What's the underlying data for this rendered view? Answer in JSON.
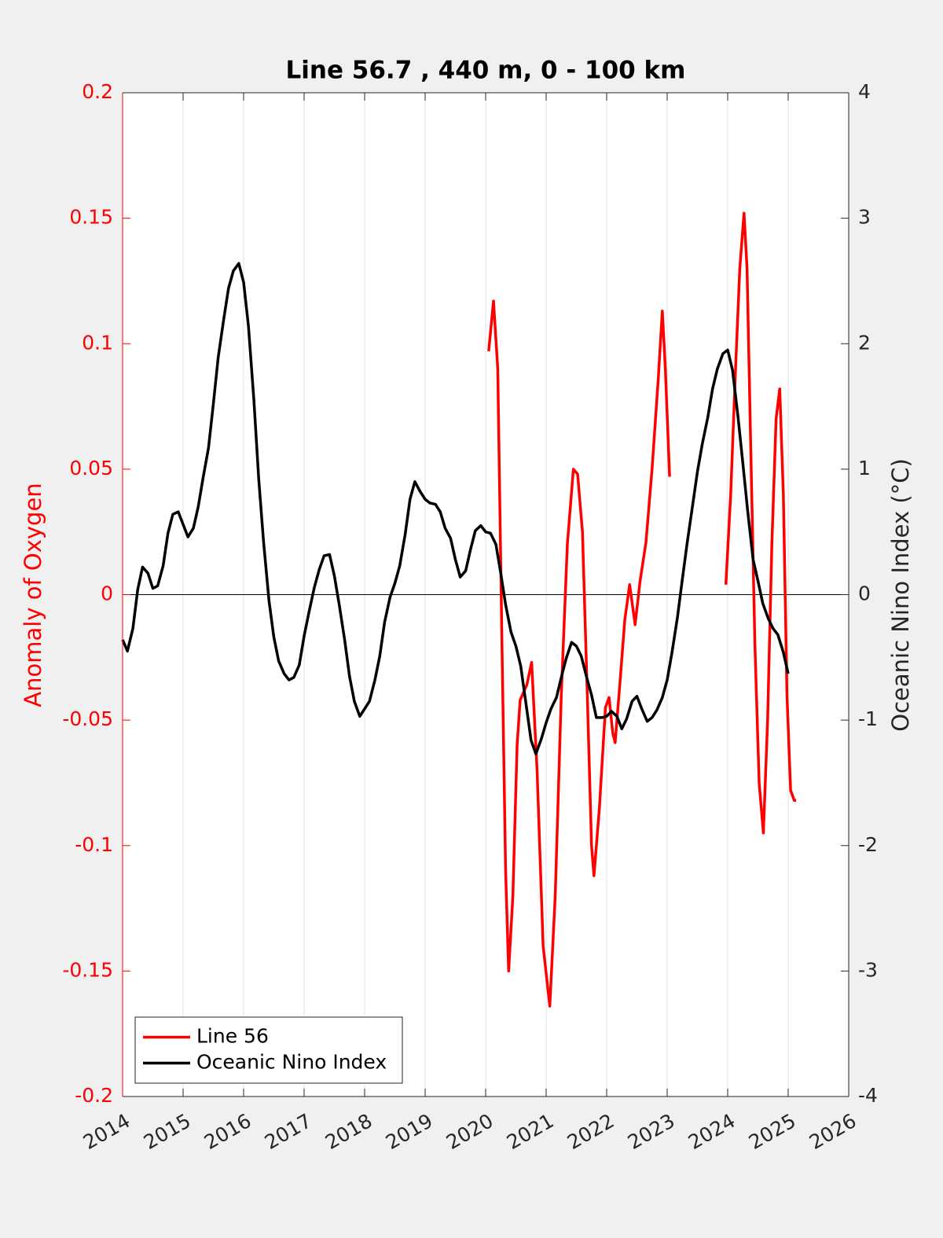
{
  "chart_data": {
    "type": "line",
    "title": "Line 56.7 , 440 m, 0 - 100 km",
    "y_label": "Anomaly of Oxygen",
    "y2_label": "Oceanic Nino Index (°C)",
    "xlim": [
      2014,
      2026
    ],
    "xticks": [
      2014,
      2015,
      2016,
      2017,
      2018,
      2019,
      2020,
      2021,
      2022,
      2023,
      2024,
      2025,
      2026
    ],
    "ylim": [
      -0.2,
      0.2
    ],
    "yticks": [
      -0.2,
      -0.15,
      -0.1,
      -0.05,
      0,
      0.05,
      0.1,
      0.15,
      0.2
    ],
    "y2lim": [
      -4,
      4
    ],
    "y2ticks": [
      -4,
      -3,
      -2,
      -1,
      0,
      1,
      2,
      3,
      4
    ],
    "y_color": "#ff0000",
    "y2_color": "#262626",
    "grid": true,
    "legend": "lower-left",
    "series": [
      {
        "name": "Line 56",
        "color": "#ff0000",
        "axis": "y",
        "x": [
          2020.05,
          2020.13,
          2020.2,
          2020.27,
          2020.33,
          2020.38,
          2020.45,
          2020.52,
          2020.57,
          2020.68,
          2020.76,
          2020.85,
          2020.95,
          2021.06,
          2021.15,
          2021.25,
          2021.35,
          2021.45,
          2021.52,
          2021.6,
          2021.68,
          2021.75,
          2021.79,
          2021.88,
          2021.98,
          2022.04,
          2022.1,
          2022.14,
          2022.22,
          2022.3,
          2022.38,
          2022.47,
          2022.55,
          2022.65,
          2022.75,
          2022.85,
          2022.92,
          2022.97,
          2023.04,
          2023.5,
          2023.97,
          2024.05,
          2024.13,
          2024.2,
          2024.27,
          2024.32,
          2024.38,
          2024.45,
          2024.52,
          2024.59,
          2024.66,
          2024.73,
          2024.8,
          2024.86,
          2024.92,
          2024.98,
          2025.04,
          2025.1,
          2025.13
        ],
        "values": [
          0.097,
          0.117,
          0.09,
          -0.02,
          -0.11,
          -0.15,
          -0.12,
          -0.06,
          -0.042,
          -0.036,
          -0.027,
          -0.07,
          -0.14,
          -0.164,
          -0.12,
          -0.04,
          0.02,
          0.05,
          0.048,
          0.025,
          -0.04,
          -0.1,
          -0.112,
          -0.085,
          -0.045,
          -0.041,
          -0.055,
          -0.059,
          -0.035,
          -0.01,
          0.004,
          -0.012,
          0.005,
          0.021,
          0.05,
          0.085,
          0.113,
          0.09,
          0.047,
          null,
          0.004,
          0.04,
          0.09,
          0.13,
          0.152,
          0.13,
          0.06,
          -0.02,
          -0.075,
          -0.095,
          -0.05,
          0.02,
          0.07,
          0.082,
          0.04,
          -0.04,
          -0.078,
          -0.082,
          -0.082
        ]
      },
      {
        "name": "Oceanic Nino Index",
        "color": "#000000",
        "axis": "y2",
        "x": [
          2014.0,
          2014.08,
          2014.17,
          2014.25,
          2014.33,
          2014.42,
          2014.5,
          2014.58,
          2014.67,
          2014.75,
          2014.83,
          2014.92,
          2015.0,
          2015.08,
          2015.17,
          2015.25,
          2015.33,
          2015.42,
          2015.5,
          2015.58,
          2015.67,
          2015.75,
          2015.83,
          2015.92,
          2016.0,
          2016.08,
          2016.17,
          2016.25,
          2016.33,
          2016.42,
          2016.5,
          2016.58,
          2016.67,
          2016.75,
          2016.83,
          2016.92,
          2017.0,
          2017.08,
          2017.17,
          2017.25,
          2017.33,
          2017.42,
          2017.5,
          2017.58,
          2017.67,
          2017.75,
          2017.83,
          2017.92,
          2018.0,
          2018.08,
          2018.17,
          2018.25,
          2018.33,
          2018.42,
          2018.5,
          2018.58,
          2018.67,
          2018.75,
          2018.83,
          2018.92,
          2019.0,
          2019.08,
          2019.17,
          2019.25,
          2019.33,
          2019.42,
          2019.5,
          2019.58,
          2019.67,
          2019.75,
          2019.83,
          2019.92,
          2020.0,
          2020.08,
          2020.17,
          2020.25,
          2020.33,
          2020.42,
          2020.5,
          2020.58,
          2020.67,
          2020.75,
          2020.83,
          2020.92,
          2021.0,
          2021.08,
          2021.17,
          2021.25,
          2021.33,
          2021.42,
          2021.5,
          2021.58,
          2021.67,
          2021.75,
          2021.83,
          2021.92,
          2022.0,
          2022.08,
          2022.17,
          2022.25,
          2022.33,
          2022.42,
          2022.5,
          2022.58,
          2022.67,
          2022.75,
          2022.83,
          2022.92,
          2023.0,
          2023.08,
          2023.17,
          2023.25,
          2023.33,
          2023.42,
          2023.5,
          2023.58,
          2023.67,
          2023.75,
          2023.83,
          2023.92,
          2024.0,
          2024.08,
          2024.17,
          2024.25,
          2024.33,
          2024.42,
          2024.5,
          2024.58,
          2024.67,
          2024.75,
          2024.83,
          2024.92,
          2025.0
        ],
        "values": [
          -0.36,
          -0.45,
          -0.27,
          0.04,
          0.22,
          0.17,
          0.05,
          0.07,
          0.23,
          0.49,
          0.64,
          0.66,
          0.56,
          0.46,
          0.53,
          0.7,
          0.93,
          1.17,
          1.52,
          1.89,
          2.19,
          2.44,
          2.58,
          2.64,
          2.49,
          2.14,
          1.55,
          0.92,
          0.42,
          -0.05,
          -0.34,
          -0.53,
          -0.63,
          -0.68,
          -0.66,
          -0.56,
          -0.33,
          -0.14,
          0.06,
          0.2,
          0.31,
          0.32,
          0.15,
          -0.08,
          -0.36,
          -0.65,
          -0.85,
          -0.97,
          -0.91,
          -0.85,
          -0.68,
          -0.49,
          -0.22,
          -0.02,
          0.09,
          0.23,
          0.48,
          0.76,
          0.9,
          0.82,
          0.76,
          0.73,
          0.72,
          0.66,
          0.53,
          0.45,
          0.28,
          0.14,
          0.19,
          0.36,
          0.51,
          0.55,
          0.5,
          0.49,
          0.4,
          0.17,
          -0.08,
          -0.3,
          -0.41,
          -0.57,
          -0.88,
          -1.16,
          -1.27,
          -1.15,
          -1.02,
          -0.91,
          -0.82,
          -0.66,
          -0.51,
          -0.38,
          -0.41,
          -0.49,
          -0.66,
          -0.8,
          -0.98,
          -0.98,
          -0.97,
          -0.93,
          -0.97,
          -1.07,
          -0.99,
          -0.85,
          -0.81,
          -0.91,
          -1.01,
          -0.98,
          -0.92,
          -0.82,
          -0.68,
          -0.46,
          -0.18,
          0.12,
          0.41,
          0.71,
          0.98,
          1.2,
          1.41,
          1.64,
          1.8,
          1.92,
          1.95,
          1.79,
          1.42,
          1.05,
          0.67,
          0.28,
          0.11,
          -0.07,
          -0.19,
          -0.27,
          -0.32,
          -0.46,
          -0.63
        ]
      }
    ]
  }
}
